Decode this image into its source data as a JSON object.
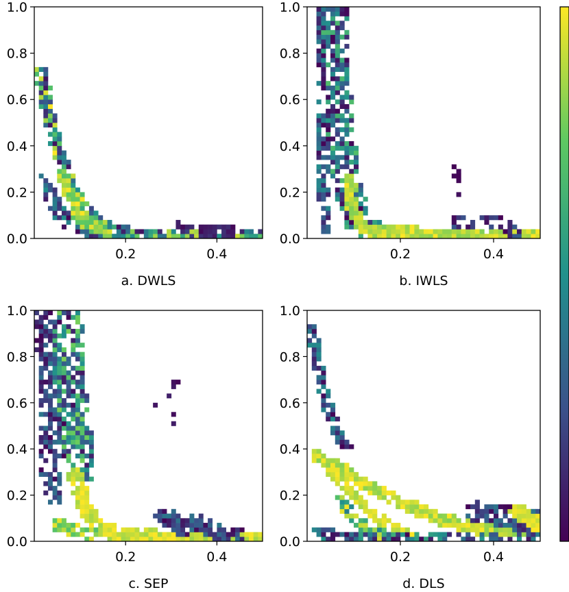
{
  "chart_data": {
    "type": "heatmap",
    "colormap": "viridis",
    "colormap_stops": [
      "#440154",
      "#3b528b",
      "#21918c",
      "#5ec962",
      "#fde725"
    ],
    "colorbar": {
      "present": true,
      "labels": []
    },
    "panels": [
      {
        "title": "a. DWLS",
        "xlim": [
          0,
          0.5
        ],
        "ylim": [
          0,
          1.0
        ],
        "xticks": [
          0.2,
          0.4
        ],
        "xtick_labels": [
          "0.2",
          "0.4"
        ],
        "yticks": [
          0.0,
          0.2,
          0.4,
          0.6,
          0.8,
          1.0
        ],
        "ytick_labels": [
          "0.0",
          "0.2",
          "0.4",
          "0.6",
          "0.8",
          "1.0"
        ],
        "bands": [
          {
            "points": [
              [
                0.015,
                0.71
              ],
              [
                0.03,
                0.55
              ],
              [
                0.05,
                0.4
              ],
              [
                0.07,
                0.28
              ],
              [
                0.1,
                0.16
              ],
              [
                0.14,
                0.06
              ],
              [
                0.2,
                0.02
              ],
              [
                0.5,
                0.005
              ]
            ],
            "width": 0.012,
            "vmin": 0.05,
            "vmax": 1.0,
            "density": 0.85
          },
          {
            "points": [
              [
                0.02,
                0.25
              ],
              [
                0.05,
                0.12
              ],
              [
                0.08,
                0.06
              ],
              [
                0.12,
                0.03
              ],
              [
                0.2,
                0.02
              ]
            ],
            "width": 0.014,
            "vmin": 0.0,
            "vmax": 0.5,
            "density": 0.6
          },
          {
            "points": [
              [
                0.06,
                0.28
              ],
              [
                0.09,
                0.12
              ],
              [
                0.12,
                0.06
              ],
              [
                0.16,
                0.03
              ]
            ],
            "width": 0.012,
            "vmin": 0.7,
            "vmax": 1.0,
            "density": 0.9
          },
          {
            "points": [
              [
                0.32,
                0.06
              ],
              [
                0.34,
                0.03
              ]
            ],
            "width": 0.01,
            "vmin": 0.0,
            "vmax": 0.15,
            "density": 0.5
          },
          {
            "points": [
              [
                0.37,
                0.03
              ],
              [
                0.43,
                0.03
              ]
            ],
            "width": 0.01,
            "vmin": 0.0,
            "vmax": 0.15,
            "density": 0.9
          }
        ]
      },
      {
        "title": "b. IWLS",
        "xlim": [
          0,
          0.5
        ],
        "ylim": [
          0,
          1.0
        ],
        "xticks": [
          0.2,
          0.4
        ],
        "xtick_labels": [
          "0.2",
          "0.4"
        ],
        "yticks": [
          0.0,
          0.2,
          0.4,
          0.6,
          0.8,
          1.0
        ],
        "ytick_labels": [
          "0.0",
          "0.2",
          "0.4",
          "0.6",
          "0.8",
          "1.0"
        ],
        "bands": [
          {
            "points": [
              [
                0.03,
                1.0
              ],
              [
                0.03,
                0.6
              ],
              [
                0.035,
                0.3
              ],
              [
                0.04,
                0.05
              ]
            ],
            "width": 0.012,
            "vmin": 0.0,
            "vmax": 0.5,
            "density": 0.6
          },
          {
            "points": [
              [
                0.06,
                1.0
              ],
              [
                0.065,
                0.7
              ],
              [
                0.075,
                0.4
              ],
              [
                0.09,
                0.2
              ],
              [
                0.11,
                0.08
              ],
              [
                0.14,
                0.02
              ]
            ],
            "width": 0.025,
            "vmin": 0.0,
            "vmax": 0.7,
            "density": 0.7
          },
          {
            "points": [
              [
                0.09,
                0.25
              ],
              [
                0.1,
                0.12
              ],
              [
                0.12,
                0.04
              ],
              [
                0.25,
                0.02
              ],
              [
                0.5,
                0.005
              ]
            ],
            "width": 0.012,
            "vmin": 0.8,
            "vmax": 1.0,
            "density": 0.95
          },
          {
            "points": [
              [
                0.32,
                0.07
              ],
              [
                0.36,
                0.05
              ],
              [
                0.4,
                0.08
              ],
              [
                0.43,
                0.05
              ],
              [
                0.45,
                0.02
              ]
            ],
            "width": 0.012,
            "vmin": 0.0,
            "vmax": 0.3,
            "density": 0.7
          },
          {
            "points": [
              [
                0.32,
                0.31
              ],
              [
                0.33,
                0.2
              ]
            ],
            "width": 0.01,
            "vmin": 0.0,
            "vmax": 0.1,
            "density": 0.4
          }
        ]
      },
      {
        "title": "c. SEP",
        "xlim": [
          0,
          0.5
        ],
        "ylim": [
          0,
          1.0
        ],
        "xticks": [
          0.2,
          0.4
        ],
        "xtick_labels": [
          "0.2",
          "0.4"
        ],
        "yticks": [
          0.0,
          0.2,
          0.4,
          0.6,
          0.8,
          1.0
        ],
        "ytick_labels": [
          "0.0",
          "0.2",
          "0.4",
          "0.6",
          "0.8",
          "1.0"
        ],
        "bands": [
          {
            "points": [
              [
                0.02,
                1.0
              ],
              [
                0.03,
                0.8
              ],
              [
                0.035,
                0.5
              ],
              [
                0.04,
                0.2
              ]
            ],
            "width": 0.02,
            "vmin": 0.0,
            "vmax": 0.4,
            "density": 0.65
          },
          {
            "points": [
              [
                0.07,
                1.0
              ],
              [
                0.075,
                0.75
              ],
              [
                0.09,
                0.5
              ],
              [
                0.1,
                0.3
              ]
            ],
            "width": 0.028,
            "vmin": 0.0,
            "vmax": 0.8,
            "density": 0.75
          },
          {
            "points": [
              [
                0.09,
                0.28
              ],
              [
                0.11,
                0.15
              ],
              [
                0.14,
                0.06
              ],
              [
                0.2,
                0.02
              ],
              [
                0.5,
                0.005
              ]
            ],
            "width": 0.014,
            "vmin": 0.85,
            "vmax": 1.0,
            "density": 0.95
          },
          {
            "points": [
              [
                0.04,
                0.08
              ],
              [
                0.08,
                0.05
              ],
              [
                0.13,
                0.03
              ]
            ],
            "width": 0.012,
            "vmin": 0.7,
            "vmax": 1.0,
            "density": 0.8
          },
          {
            "points": [
              [
                0.27,
                0.6
              ],
              [
                0.31,
                0.68
              ],
              [
                0.3,
                0.5
              ],
              [
                0.32,
                0.49
              ]
            ],
            "width": 0.006,
            "vmin": 0.0,
            "vmax": 0.1,
            "density": 0.45
          },
          {
            "points": [
              [
                0.28,
                0.12
              ],
              [
                0.32,
                0.06
              ],
              [
                0.36,
                0.08
              ],
              [
                0.4,
                0.04
              ],
              [
                0.44,
                0.03
              ]
            ],
            "width": 0.016,
            "vmin": 0.0,
            "vmax": 0.4,
            "density": 0.7
          }
        ]
      },
      {
        "title": "d. DLS",
        "xlim": [
          0,
          0.5
        ],
        "ylim": [
          0,
          1.0
        ],
        "xticks": [
          0.2,
          0.4
        ],
        "xtick_labels": [
          "0.2",
          "0.4"
        ],
        "yticks": [
          0.0,
          0.2,
          0.4,
          0.6,
          0.8,
          1.0
        ],
        "ytick_labels": [
          "0.0",
          "0.2",
          "0.4",
          "0.6",
          "0.8",
          "1.0"
        ],
        "bands": [
          {
            "points": [
              [
                0.01,
                0.92
              ],
              [
                0.03,
                0.7
              ],
              [
                0.05,
                0.55
              ],
              [
                0.07,
                0.45
              ],
              [
                0.09,
                0.38
              ]
            ],
            "width": 0.01,
            "vmin": 0.0,
            "vmax": 0.5,
            "density": 0.75
          },
          {
            "points": [
              [
                0.02,
                0.37
              ],
              [
                0.07,
                0.32
              ],
              [
                0.13,
                0.24
              ],
              [
                0.2,
                0.17
              ],
              [
                0.28,
                0.1
              ],
              [
                0.36,
                0.06
              ],
              [
                0.45,
                0.04
              ],
              [
                0.5,
                0.05
              ]
            ],
            "width": 0.012,
            "vmin": 0.8,
            "vmax": 1.0,
            "density": 0.95
          },
          {
            "points": [
              [
                0.05,
                0.3
              ],
              [
                0.09,
                0.22
              ],
              [
                0.13,
                0.14
              ],
              [
                0.17,
                0.07
              ],
              [
                0.22,
                0.03
              ]
            ],
            "width": 0.01,
            "vmin": 0.85,
            "vmax": 1.0,
            "density": 0.9
          },
          {
            "points": [
              [
                0.07,
                0.18
              ],
              [
                0.1,
                0.1
              ],
              [
                0.14,
                0.04
              ],
              [
                0.18,
                0.02
              ]
            ],
            "width": 0.01,
            "vmin": 0.4,
            "vmax": 1.0,
            "density": 0.75
          },
          {
            "points": [
              [
                0.02,
                0.05
              ],
              [
                0.06,
                0.02
              ],
              [
                0.3,
                0.01
              ],
              [
                0.5,
                0.01
              ]
            ],
            "width": 0.012,
            "vmin": 0.0,
            "vmax": 0.6,
            "density": 0.6
          },
          {
            "points": [
              [
                0.36,
                0.13
              ],
              [
                0.42,
                0.11
              ],
              [
                0.47,
                0.08
              ],
              [
                0.5,
                0.1
              ]
            ],
            "width": 0.02,
            "vmin": 0.0,
            "vmax": 0.4,
            "density": 0.7
          },
          {
            "points": [
              [
                0.45,
                0.13
              ],
              [
                0.5,
                0.07
              ]
            ],
            "width": 0.015,
            "vmin": 0.9,
            "vmax": 1.0,
            "density": 0.95
          }
        ]
      }
    ]
  }
}
